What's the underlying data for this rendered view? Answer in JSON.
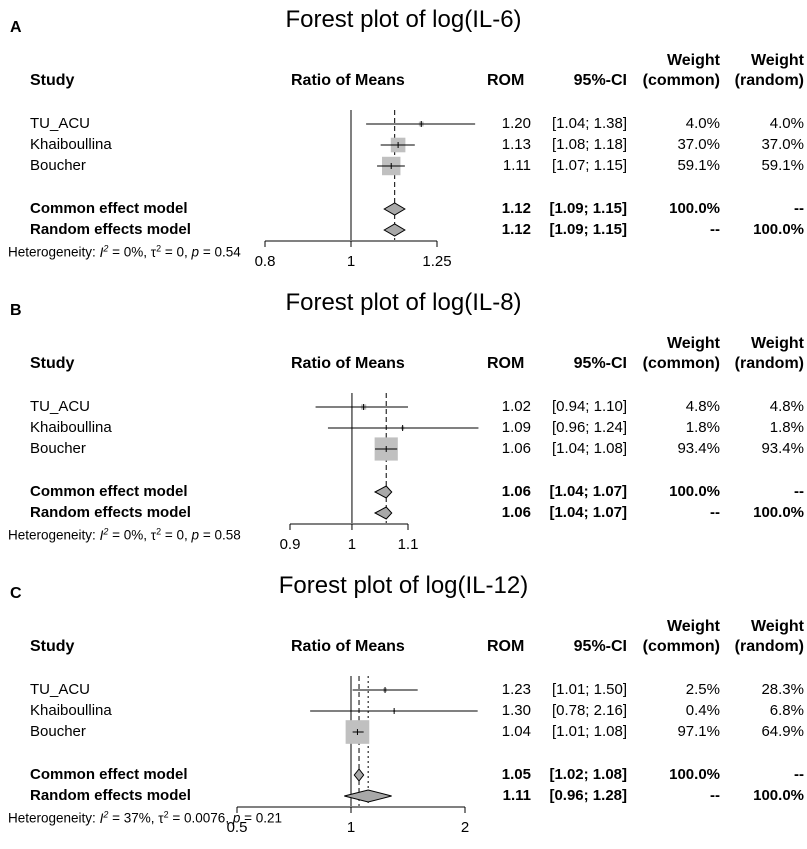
{
  "chart_data": [
    {
      "type": "forest",
      "panel_label": "A",
      "title": "Forest plot of log(IL-6)",
      "headers": {
        "study": "Study",
        "plot": "Ratio of Means",
        "rom": "ROM",
        "ci": "95%-CI",
        "weight_common_1": "Weight",
        "weight_common_2": "(common)",
        "weight_random_1": "Weight",
        "weight_random_2": "(random)"
      },
      "studies": [
        {
          "name": "TU_ACU",
          "rom": 1.2,
          "lo": 1.04,
          "hi": 1.38,
          "rom_text": "1.20",
          "ci_text": "[1.04; 1.38]",
          "w_common": "4.0%",
          "w_random": "4.0%",
          "w": 4.0
        },
        {
          "name": "Khaiboullina",
          "rom": 1.13,
          "lo": 1.08,
          "hi": 1.18,
          "rom_text": "1.13",
          "ci_text": "[1.08; 1.18]",
          "w_common": "37.0%",
          "w_random": "37.0%",
          "w": 37.0
        },
        {
          "name": "Boucher",
          "rom": 1.11,
          "lo": 1.07,
          "hi": 1.15,
          "rom_text": "1.11",
          "ci_text": "[1.07; 1.15]",
          "w_common": "59.1%",
          "w_random": "59.1%",
          "w": 59.1
        }
      ],
      "models": [
        {
          "name": "Common effect model",
          "rom": 1.12,
          "lo": 1.09,
          "hi": 1.15,
          "rom_text": "1.12",
          "ci_text": "[1.09; 1.15]",
          "w_common": "100.0%",
          "w_random": "--"
        },
        {
          "name": "Random effects model",
          "rom": 1.12,
          "lo": 1.09,
          "hi": 1.15,
          "rom_text": "1.12",
          "ci_text": "[1.09; 1.15]",
          "w_common": "--",
          "w_random": "100.0%"
        }
      ],
      "heterogeneity": {
        "label": "Heterogeneity: ",
        "i2": "= 0%, ",
        "tau2": "= 0, ",
        "p": "= 0.54"
      },
      "axis": {
        "ticks": [
          0.8,
          1,
          1.25
        ],
        "tick_labels": [
          "0.8",
          "1",
          "1.25"
        ],
        "range": [
          0.8,
          1.25
        ],
        "log": true
      },
      "common_line": 1.12,
      "random_line": 1.12
    },
    {
      "type": "forest",
      "panel_label": "B",
      "title": "Forest plot of log(IL-8)",
      "headers": {
        "study": "Study",
        "plot": "Ratio of Means",
        "rom": "ROM",
        "ci": "95%-CI",
        "weight_common_1": "Weight",
        "weight_common_2": "(common)",
        "weight_random_1": "Weight",
        "weight_random_2": "(random)"
      },
      "studies": [
        {
          "name": "TU_ACU",
          "rom": 1.02,
          "lo": 0.94,
          "hi": 1.1,
          "rom_text": "1.02",
          "ci_text": "[0.94; 1.10]",
          "w_common": "4.8%",
          "w_random": "4.8%",
          "w": 4.8
        },
        {
          "name": "Khaiboullina",
          "rom": 1.09,
          "lo": 0.96,
          "hi": 1.24,
          "rom_text": "1.09",
          "ci_text": "[0.96; 1.24]",
          "w_common": "1.8%",
          "w_random": "1.8%",
          "w": 1.8
        },
        {
          "name": "Boucher",
          "rom": 1.06,
          "lo": 1.04,
          "hi": 1.08,
          "rom_text": "1.06",
          "ci_text": "[1.04; 1.08]",
          "w_common": "93.4%",
          "w_random": "93.4%",
          "w": 93.4
        }
      ],
      "models": [
        {
          "name": "Common effect model",
          "rom": 1.06,
          "lo": 1.04,
          "hi": 1.07,
          "rom_text": "1.06",
          "ci_text": "[1.04; 1.07]",
          "w_common": "100.0%",
          "w_random": "--"
        },
        {
          "name": "Random effects model",
          "rom": 1.06,
          "lo": 1.04,
          "hi": 1.07,
          "rom_text": "1.06",
          "ci_text": "[1.04; 1.07]",
          "w_common": "--",
          "w_random": "100.0%"
        }
      ],
      "heterogeneity": {
        "label": "Heterogeneity: ",
        "i2": "= 0%, ",
        "tau2": "= 0, ",
        "p": "= 0.58"
      },
      "axis": {
        "ticks": [
          0.9,
          1,
          1.1
        ],
        "tick_labels": [
          "0.9",
          "1",
          "1.1"
        ],
        "range": [
          0.9,
          1.1
        ],
        "log": true
      },
      "common_line": 1.06,
      "random_line": 1.06
    },
    {
      "type": "forest",
      "panel_label": "C",
      "title": "Forest plot of log(IL-12)",
      "headers": {
        "study": "Study",
        "plot": "Ratio of Means",
        "rom": "ROM",
        "ci": "95%-CI",
        "weight_common_1": "Weight",
        "weight_common_2": "(common)",
        "weight_random_1": "Weight",
        "weight_random_2": "(random)"
      },
      "studies": [
        {
          "name": "TU_ACU",
          "rom": 1.23,
          "lo": 1.01,
          "hi": 1.5,
          "rom_text": "1.23",
          "ci_text": "[1.01; 1.50]",
          "w_common": "2.5%",
          "w_random": "28.3%",
          "w": 2.5
        },
        {
          "name": "Khaiboullina",
          "rom": 1.3,
          "lo": 0.78,
          "hi": 2.16,
          "rom_text": "1.30",
          "ci_text": "[0.78; 2.16]",
          "w_common": "0.4%",
          "w_random": "6.8%",
          "w": 0.4
        },
        {
          "name": "Boucher",
          "rom": 1.04,
          "lo": 1.01,
          "hi": 1.08,
          "rom_text": "1.04",
          "ci_text": "[1.01; 1.08]",
          "w_common": "97.1%",
          "w_random": "64.9%",
          "w": 97.1
        }
      ],
      "models": [
        {
          "name": "Common effect model",
          "rom": 1.05,
          "lo": 1.02,
          "hi": 1.08,
          "rom_text": "1.05",
          "ci_text": "[1.02; 1.08]",
          "w_common": "100.0%",
          "w_random": "--"
        },
        {
          "name": "Random effects model",
          "rom": 1.11,
          "lo": 0.96,
          "hi": 1.28,
          "rom_text": "1.11",
          "ci_text": "[0.96; 1.28]",
          "w_common": "--",
          "w_random": "100.0%"
        }
      ],
      "heterogeneity": {
        "label": "Heterogeneity: ",
        "i2": "= 37%, ",
        "tau2": "= 0.0076, ",
        "p": "= 0.21"
      },
      "axis": {
        "ticks": [
          0.5,
          1,
          2
        ],
        "tick_labels": [
          "0.5",
          "1",
          "2"
        ],
        "range": [
          0.5,
          2
        ],
        "log": true
      },
      "common_line": 1.05,
      "random_line": 1.11
    }
  ]
}
